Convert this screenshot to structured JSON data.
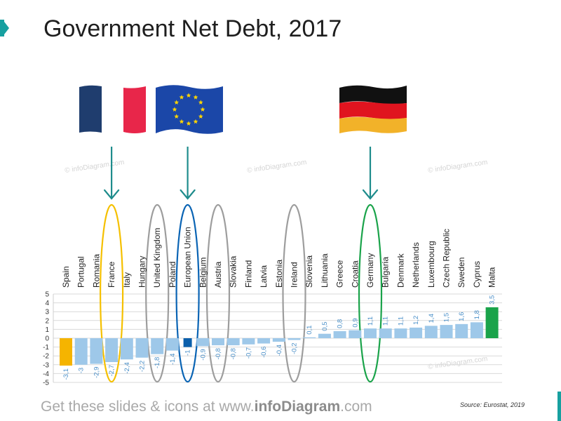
{
  "title": "Government Net Debt, 2017",
  "footer": {
    "prefix": "Get these slides & icons at www.",
    "brand": "infoDiagram",
    "suffix": ".com"
  },
  "source": "Source: Eurostat, 2019",
  "watermark": "© infoDiagram.com",
  "flags": [
    {
      "name": "France",
      "icon": "france-flag-icon"
    },
    {
      "name": "European Union",
      "icon": "eu-flag-icon"
    },
    {
      "name": "Germany",
      "icon": "germany-flag-icon"
    }
  ],
  "colors": {
    "bar_default": "#9ec8e9",
    "bar_min": "#f5b400",
    "bar_max": "#1aa34a",
    "bar_eu": "#0b5fab",
    "highlight_france": "#f5c000",
    "highlight_eu": "#0a64b4",
    "highlight_germany": "#1aa34a",
    "highlight_other": "#9d9d9d",
    "arrow": "#1e8c8c",
    "accent": "#17a0a0"
  },
  "chart_data": {
    "type": "bar",
    "categories": [
      "Spain",
      "Portugal",
      "Romania",
      "France",
      "Italy",
      "Hungary",
      "United Kingdom",
      "Poland",
      "European Union",
      "Belgium",
      "Austria",
      "Slovakia",
      "Finland",
      "Latvia",
      "Estonia",
      "Ireland",
      "Slovenia",
      "Lithuania",
      "Greece",
      "Croatia",
      "Germany",
      "Bulgaria",
      "Denmark",
      "Netherlands",
      "Luxembourg",
      "Czech Republic",
      "Sweden",
      "Cyprus",
      "Malta"
    ],
    "values": [
      -3.1,
      -3,
      -2.9,
      -2.7,
      -2.4,
      -2.2,
      -1.8,
      -1.4,
      -1,
      -0.9,
      -0.8,
      -0.8,
      -0.7,
      -0.6,
      -0.4,
      -0.2,
      0.1,
      0.5,
      0.8,
      0.9,
      1.1,
      1.1,
      1.1,
      1.2,
      1.4,
      1.5,
      1.6,
      1.8,
      3.5
    ],
    "value_labels": [
      "-3,1",
      "-3",
      "-2,9",
      "-2,7",
      "-2,4",
      "-2,2",
      "-1,8",
      "-1,4",
      "-1",
      "-0,9",
      "-0,8",
      "-0,8",
      "-0,7",
      "-0,6",
      "-0,4",
      "-0,2",
      "0,1",
      "0,5",
      "0,8",
      "0,9",
      "1,1",
      "1,1",
      "1,1",
      "1,2",
      "1,4",
      "1,5",
      "1,6",
      "1,8",
      "3,5"
    ],
    "title": "Government Net Debt, 2017",
    "xlabel": "",
    "ylabel": "",
    "ylim": [
      -5,
      5
    ],
    "yticks": [
      -5,
      -4,
      -3,
      -2,
      -1,
      0,
      1,
      2,
      3,
      4,
      5
    ],
    "grid": true,
    "legend": "none",
    "highlighted": [
      {
        "category": "France",
        "color": "highlight_france",
        "arrow": true
      },
      {
        "category": "United Kingdom",
        "color": "highlight_other",
        "arrow": false
      },
      {
        "category": "European Union",
        "color": "highlight_eu",
        "arrow": true
      },
      {
        "category": "Austria",
        "color": "highlight_other",
        "arrow": false
      },
      {
        "category": "Ireland",
        "color": "highlight_other",
        "arrow": false
      },
      {
        "category": "Germany",
        "color": "highlight_germany",
        "arrow": true
      }
    ]
  }
}
